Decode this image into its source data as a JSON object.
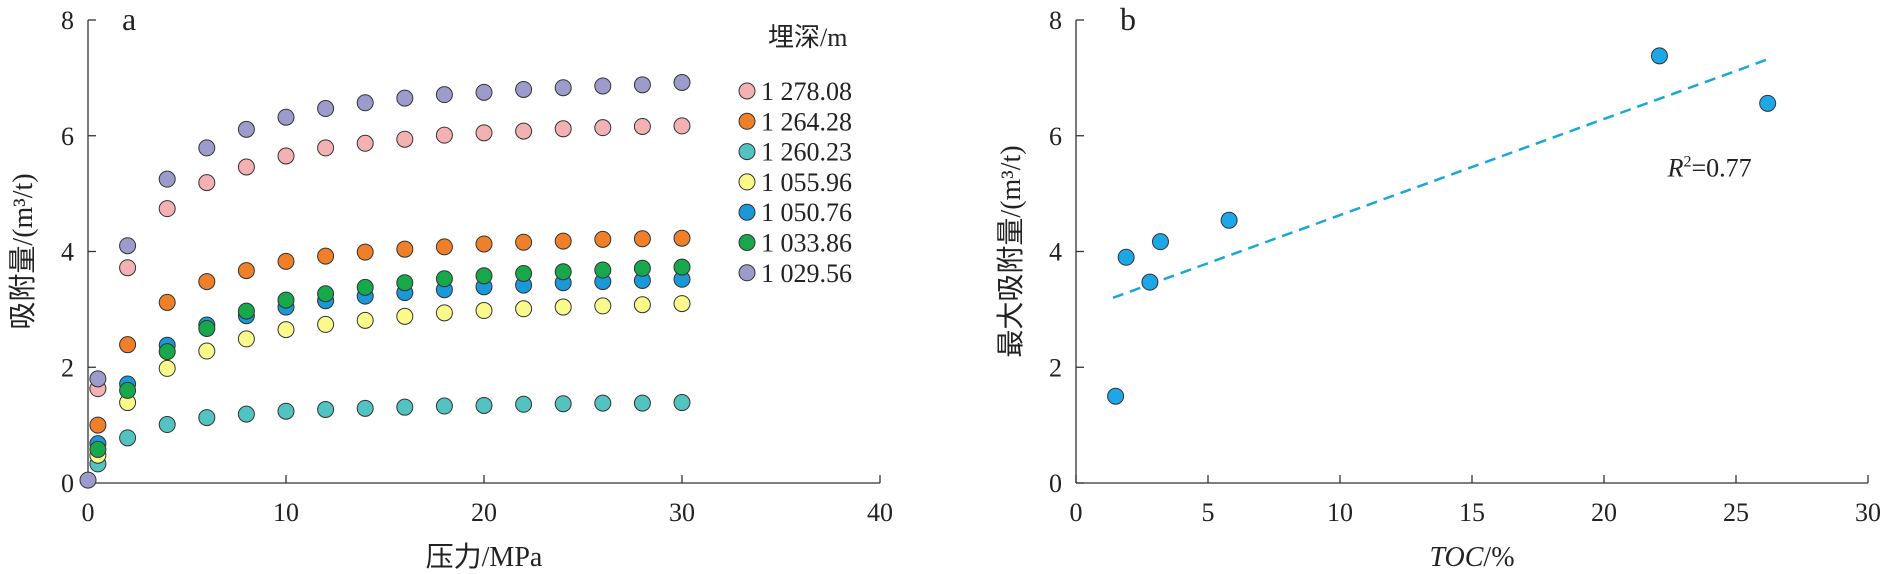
{
  "colors": {
    "s1": "#f4b1b4",
    "s2": "#f07f2a",
    "s3": "#52c3c0",
    "s4": "#fafa8a",
    "s5": "#1a98d8",
    "s6": "#17a84c",
    "s7": "#9d9bcc",
    "b_points": "#1ea7e6",
    "trend": "#19a7d8"
  },
  "chart_data": [
    {
      "type": "scatter",
      "panel": "a",
      "title": "",
      "xlabel": "压力/MPa",
      "ylabel": "吸附量/(m³/t)",
      "xlim": [
        0,
        40
      ],
      "ylim": [
        0,
        8
      ],
      "xticks": [
        0,
        10,
        20,
        30,
        40
      ],
      "yticks": [
        0,
        2,
        4,
        6,
        8
      ],
      "legend_title": "埋深/m",
      "legend_position": "top-right",
      "x": [
        0.5,
        2,
        4,
        6,
        8,
        10,
        12,
        14,
        16,
        18,
        20,
        22,
        24,
        26,
        28,
        30
      ],
      "series": [
        {
          "name": "1 278.08",
          "color_key": "s1",
          "values": [
            1.63,
            3.72,
            4.74,
            5.19,
            5.46,
            5.65,
            5.79,
            5.87,
            5.94,
            6.01,
            6.05,
            6.08,
            6.12,
            6.14,
            6.16,
            6.17
          ]
        },
        {
          "name": "1 264.28",
          "color_key": "s2",
          "values": [
            1.0,
            2.39,
            3.12,
            3.48,
            3.67,
            3.83,
            3.92,
            3.99,
            4.04,
            4.08,
            4.13,
            4.16,
            4.18,
            4.21,
            4.22,
            4.23
          ]
        },
        {
          "name": "1 260.23",
          "color_key": "s3",
          "values": [
            0.33,
            0.78,
            1.01,
            1.13,
            1.19,
            1.24,
            1.27,
            1.29,
            1.31,
            1.33,
            1.34,
            1.36,
            1.37,
            1.38,
            1.38,
            1.39
          ]
        },
        {
          "name": "1 055.96",
          "color_key": "s4",
          "values": [
            0.48,
            1.39,
            1.98,
            2.28,
            2.49,
            2.65,
            2.74,
            2.81,
            2.88,
            2.94,
            2.98,
            3.01,
            3.04,
            3.06,
            3.08,
            3.1
          ]
        },
        {
          "name": "1 050.76",
          "color_key": "s5",
          "values": [
            0.68,
            1.71,
            2.38,
            2.73,
            2.89,
            3.04,
            3.15,
            3.23,
            3.29,
            3.34,
            3.39,
            3.42,
            3.46,
            3.48,
            3.5,
            3.52
          ]
        },
        {
          "name": "1 033.86",
          "color_key": "s6",
          "values": [
            0.58,
            1.6,
            2.27,
            2.67,
            2.97,
            3.16,
            3.27,
            3.38,
            3.46,
            3.53,
            3.58,
            3.62,
            3.65,
            3.68,
            3.71,
            3.73
          ]
        },
        {
          "name": "1 029.56",
          "color_key": "s7",
          "values": [
            1.8,
            4.1,
            5.25,
            5.79,
            6.11,
            6.32,
            6.47,
            6.57,
            6.65,
            6.71,
            6.75,
            6.8,
            6.83,
            6.86,
            6.88,
            6.92
          ]
        }
      ],
      "extra_points": [
        {
          "x": 0,
          "y": 0.05,
          "color_key": "s7"
        }
      ]
    },
    {
      "type": "scatter",
      "panel": "b",
      "title": "",
      "xlabel": "TOC/%",
      "ylabel": "最大吸附量/(m³/t)",
      "xlim": [
        0,
        30
      ],
      "ylim": [
        0,
        8
      ],
      "xticks": [
        0,
        5,
        10,
        15,
        20,
        25,
        30
      ],
      "yticks": [
        0,
        2,
        4,
        6,
        8
      ],
      "points": [
        {
          "x": 1.5,
          "y": 1.5
        },
        {
          "x": 1.9,
          "y": 3.9
        },
        {
          "x": 2.8,
          "y": 3.47
        },
        {
          "x": 3.2,
          "y": 4.17
        },
        {
          "x": 5.8,
          "y": 4.54
        },
        {
          "x": 22.1,
          "y": 7.38
        },
        {
          "x": 26.2,
          "y": 6.56
        }
      ],
      "trendline": {
        "x": [
          1.4,
          26.2
        ],
        "y": [
          3.2,
          7.32
        ]
      },
      "annotation": {
        "text_italic": "R",
        "superscript": "2",
        "text": "=0.77",
        "x": 24.0,
        "y": 5.3
      }
    }
  ]
}
